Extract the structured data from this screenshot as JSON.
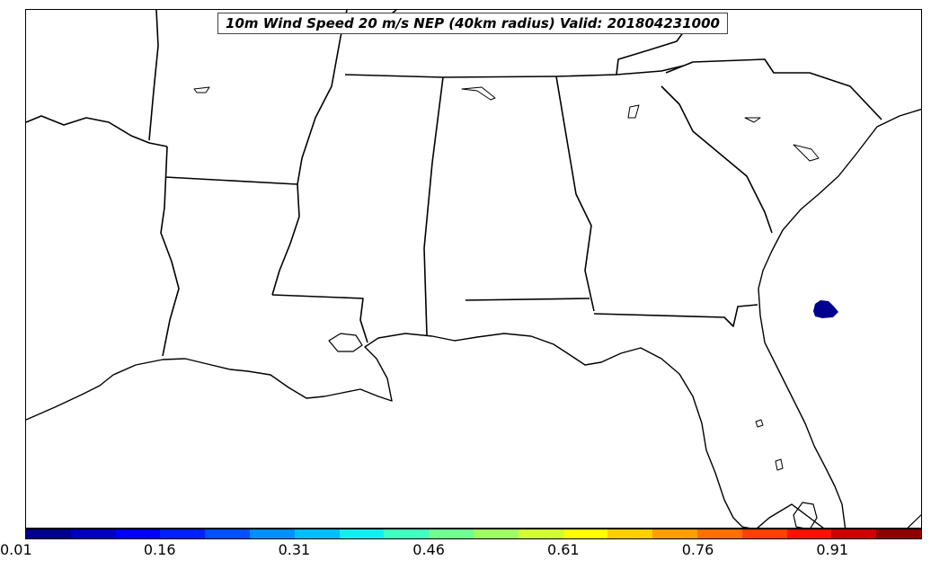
{
  "map": {
    "title": "10m Wind Speed 20 m/s NEP (40km radius) Valid: 201804231000",
    "probability_area": {
      "color": "#00008f",
      "value": 0.01
    },
    "colorbar": {
      "colors": [
        "#000090",
        "#0000c0",
        "#0000ff",
        "#0020ff",
        "#0050ff",
        "#0090ff",
        "#00c0ff",
        "#10f0f0",
        "#40ffc0",
        "#70ff90",
        "#a0ff60",
        "#d0ff30",
        "#ffff00",
        "#ffd000",
        "#ffa000",
        "#ff7000",
        "#ff4000",
        "#ff1000",
        "#d00000",
        "#900000"
      ],
      "ticks": [
        "0.01",
        "0.16",
        "0.31",
        "0.46",
        "0.61",
        "0.76",
        "0.91"
      ]
    }
  }
}
